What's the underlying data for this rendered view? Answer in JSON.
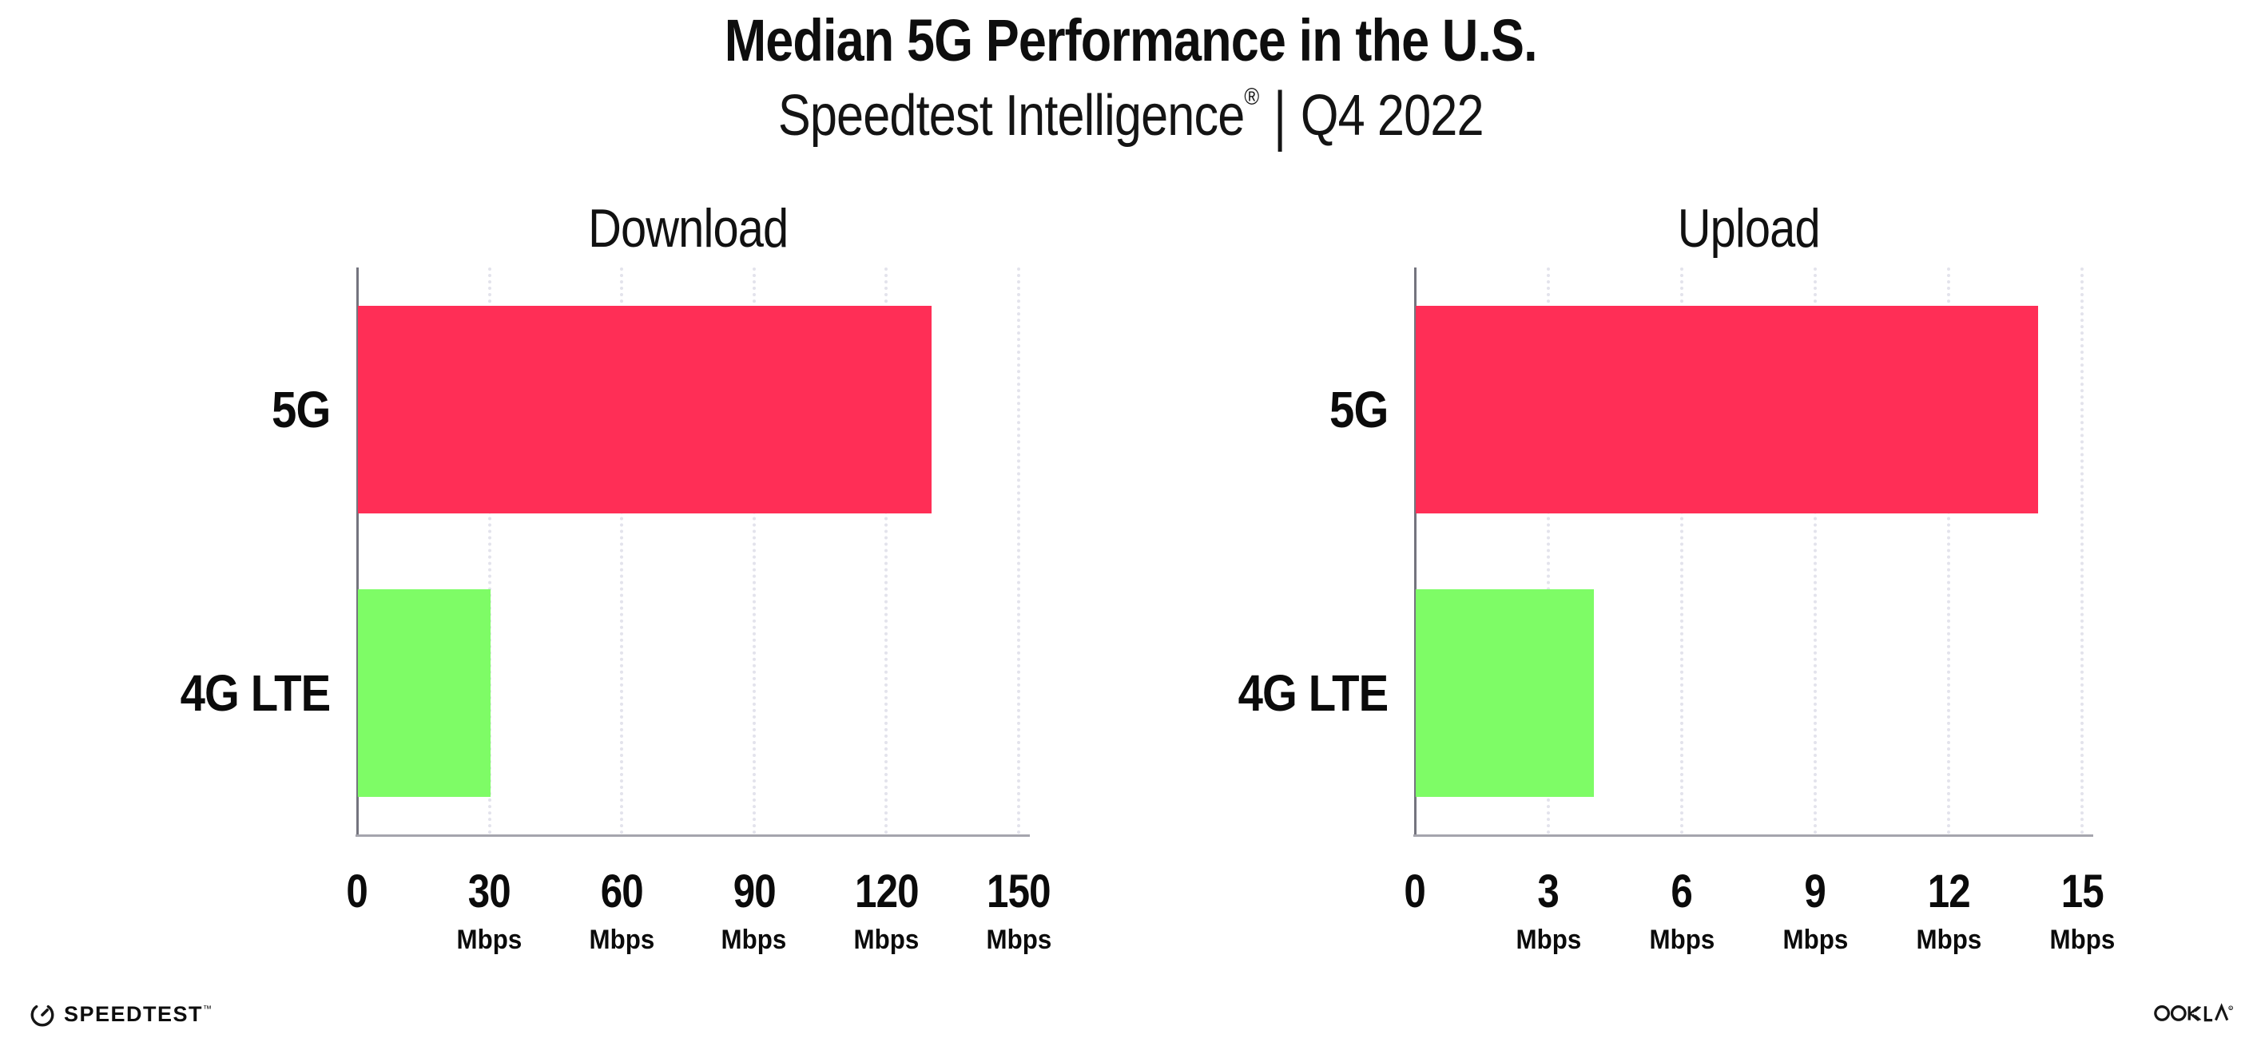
{
  "header": {
    "title": "Median 5G Performance in the U.S.",
    "subtitle_brand": "Speedtest Intelligence",
    "subtitle_reg": "®",
    "subtitle_sep": "|",
    "subtitle_period": "Q4 2022"
  },
  "colors": {
    "bar_5g": "#ff2e56",
    "bar_4g_lte": "#7efc66",
    "gridline": "#e3e3ec",
    "x_axis_line": "#a5a5ad",
    "y_axis_spine": "#74747e",
    "text": "#0e0e0e"
  },
  "chart_data": [
    {
      "type": "bar",
      "orientation": "horizontal",
      "title": "Download",
      "categories": [
        "5G",
        "4G LTE"
      ],
      "values": [
        130,
        30
      ],
      "unit": "Mbps",
      "xlim": [
        0,
        150
      ],
      "xticks": [
        0,
        30,
        60,
        90,
        120,
        150
      ],
      "bar_colors": [
        "#ff2e56",
        "#7efc66"
      ],
      "grid": "dotted-vertical-gridlines",
      "legend": "none"
    },
    {
      "type": "bar",
      "orientation": "horizontal",
      "title": "Upload",
      "categories": [
        "5G",
        "4G LTE"
      ],
      "values": [
        14,
        4
      ],
      "unit": "Mbps",
      "xlim": [
        0,
        15
      ],
      "xticks": [
        0,
        3,
        6,
        9,
        12,
        15
      ],
      "bar_colors": [
        "#ff2e56",
        "#7efc66"
      ],
      "grid": "dotted-vertical-gridlines",
      "legend": "none"
    }
  ],
  "footer": {
    "speedtest_wordmark": "SPEEDTEST",
    "speedtest_tm": "™",
    "ookla_wordmark": "OOKLA",
    "ookla_reg": "®"
  }
}
